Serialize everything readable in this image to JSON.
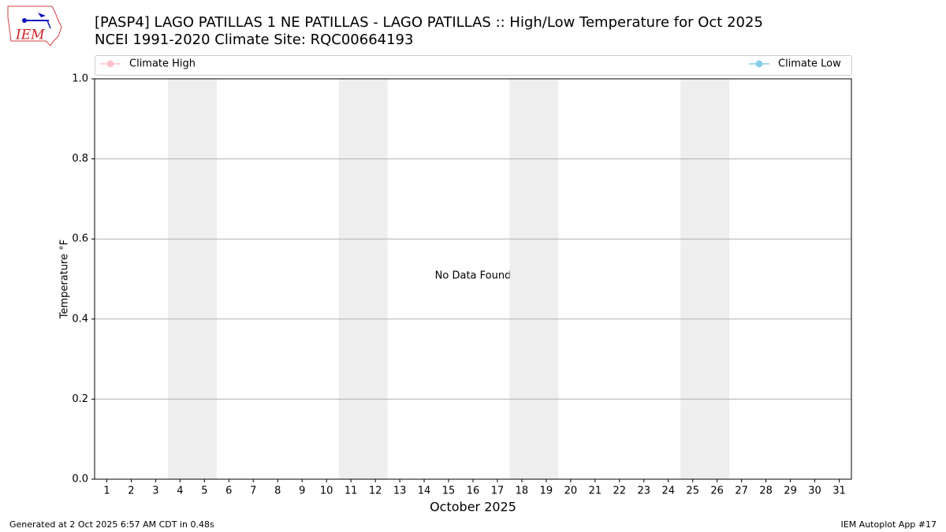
{
  "logo_text": "IEM",
  "chart_data": {
    "type": "line",
    "title": "[PASP4] LAGO PATILLAS 1 NE PATILLAS - LAGO PATILLAS :: High/Low Temperature for Oct 2025",
    "subtitle": "NCEI 1991-2020 Climate Site: RQC00664193",
    "x_label": "October 2025",
    "y_label": "Temperature °F",
    "annotation": "No Data Found",
    "x": [
      1,
      2,
      3,
      4,
      5,
      6,
      7,
      8,
      9,
      10,
      11,
      12,
      13,
      14,
      15,
      16,
      17,
      18,
      19,
      20,
      21,
      22,
      23,
      24,
      25,
      26,
      27,
      28,
      29,
      30,
      31
    ],
    "xlim": [
      0.5,
      31.5
    ],
    "xticks": [
      1,
      2,
      3,
      4,
      5,
      6,
      7,
      8,
      9,
      10,
      11,
      12,
      13,
      14,
      15,
      16,
      17,
      18,
      19,
      20,
      21,
      22,
      23,
      24,
      25,
      26,
      27,
      28,
      29,
      30,
      31
    ],
    "ylim": [
      0,
      1
    ],
    "yticks": [
      {
        "value": 0,
        "label": "0.0"
      },
      0.2,
      0.4,
      0.6,
      0.8,
      {
        "value": 1,
        "label": "1.0"
      }
    ],
    "grid": true,
    "shaded_days": [
      4,
      5,
      11,
      12,
      18,
      19,
      25,
      26
    ],
    "shade_color": "#eeeeee",
    "series": [
      {
        "name": "Climate High",
        "color": "#ffc0cb",
        "values": [
          null,
          null,
          null,
          null,
          null,
          null,
          null,
          null,
          null,
          null,
          null,
          null,
          null,
          null,
          null,
          null,
          null,
          null,
          null,
          null,
          null,
          null,
          null,
          null,
          null,
          null,
          null,
          null,
          null,
          null,
          null
        ]
      },
      {
        "name": "Climate Low",
        "color": "#87ceeb",
        "values": [
          null,
          null,
          null,
          null,
          null,
          null,
          null,
          null,
          null,
          null,
          null,
          null,
          null,
          null,
          null,
          null,
          null,
          null,
          null,
          null,
          null,
          null,
          null,
          null,
          null,
          null,
          null,
          null,
          null,
          null,
          null
        ]
      }
    ],
    "footer_left": "Generated at 2 Oct 2025 6:57 AM CDT in 0.48s",
    "footer_right": "IEM Autoplot App #17"
  }
}
